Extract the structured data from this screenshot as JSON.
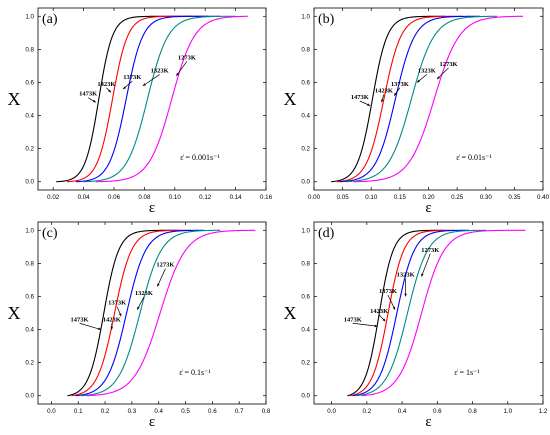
{
  "colors": {
    "1473K": "#000000",
    "1423K": "#ff0000",
    "1373K": "#0000ff",
    "1323K": "#008b8b",
    "1273K": "#ff00ff"
  },
  "chart_data": [
    {
      "type": "line",
      "panel": "(a)",
      "xlabel": "ε",
      "ylabel": "X",
      "rate_label": "ε̇ = 0.001s⁻¹",
      "xlim": [
        0.01,
        0.16
      ],
      "ylim": [
        -0.05,
        1.05
      ],
      "xticks": [
        "0.02",
        "0.04",
        "0.06",
        "0.08",
        "0.10",
        "0.12",
        "0.14",
        "0.16"
      ],
      "yticks": [
        "0.0",
        "0.2",
        "0.4",
        "0.6",
        "0.8",
        "1.0"
      ],
      "series": [
        {
          "name": "1473K",
          "color": "#000000",
          "x_start": 0.022,
          "x_half": 0.05,
          "x_end": 0.112,
          "k": 0.0045
        },
        {
          "name": "1423K",
          "color": "#ff0000",
          "x_start": 0.029,
          "x_half": 0.059,
          "x_end": 0.122,
          "k": 0.005
        },
        {
          "name": "1373K",
          "color": "#0000ff",
          "x_start": 0.035,
          "x_half": 0.068,
          "x_end": 0.13,
          "k": 0.0055
        },
        {
          "name": "1323K",
          "color": "#008b8b",
          "x_start": 0.04,
          "x_half": 0.082,
          "x_end": 0.14,
          "k": 0.0068
        },
        {
          "name": "1273K",
          "color": "#ff00ff",
          "x_start": 0.048,
          "x_half": 0.098,
          "x_end": 0.148,
          "k": 0.0075
        }
      ],
      "annotations": [
        {
          "text": "1473K",
          "x": 0.043,
          "y": 0.52,
          "tx": 0.048,
          "ty": 0.48
        },
        {
          "text": "1423K",
          "x": 0.055,
          "y": 0.58,
          "tx": 0.058,
          "ty": 0.54
        },
        {
          "text": "1373K",
          "x": 0.072,
          "y": 0.62,
          "tx": 0.066,
          "ty": 0.56
        },
        {
          "text": "1323K",
          "x": 0.09,
          "y": 0.66,
          "tx": 0.079,
          "ty": 0.58
        },
        {
          "text": "1273K",
          "x": 0.108,
          "y": 0.74,
          "tx": 0.101,
          "ty": 0.64
        }
      ]
    },
    {
      "type": "line",
      "panel": "(b)",
      "xlabel": "ε",
      "ylabel": "X",
      "rate_label": "ε̇ = 0.01s⁻¹",
      "xlim": [
        0.0,
        0.4
      ],
      "ylim": [
        -0.05,
        1.05
      ],
      "xticks": [
        "0.00",
        "0.05",
        "0.10",
        "0.15",
        "0.20",
        "0.25",
        "0.30",
        "0.35",
        "0.40"
      ],
      "yticks": [
        "0.0",
        "0.2",
        "0.4",
        "0.6",
        "0.8",
        "1.0"
      ],
      "series": [
        {
          "name": "1473K",
          "color": "#000000",
          "x_start": 0.03,
          "x_half": 0.102,
          "x_end": 0.23,
          "k": 0.013
        },
        {
          "name": "1423K",
          "color": "#ff0000",
          "x_start": 0.04,
          "x_half": 0.122,
          "x_end": 0.26,
          "k": 0.015
        },
        {
          "name": "1373K",
          "color": "#0000ff",
          "x_start": 0.045,
          "x_half": 0.142,
          "x_end": 0.29,
          "k": 0.017
        },
        {
          "name": "1323K",
          "color": "#008b8b",
          "x_start": 0.055,
          "x_half": 0.17,
          "x_end": 0.32,
          "k": 0.02
        },
        {
          "name": "1273K",
          "color": "#ff00ff",
          "x_start": 0.07,
          "x_half": 0.21,
          "x_end": 0.365,
          "k": 0.022
        }
      ],
      "annotations": [
        {
          "text": "1473K",
          "x": 0.08,
          "y": 0.5,
          "tx": 0.098,
          "ty": 0.46
        },
        {
          "text": "1423K",
          "x": 0.122,
          "y": 0.54,
          "tx": 0.118,
          "ty": 0.48
        },
        {
          "text": "1373K",
          "x": 0.15,
          "y": 0.58,
          "tx": 0.14,
          "ty": 0.52
        },
        {
          "text": "1323K",
          "x": 0.197,
          "y": 0.66,
          "tx": 0.18,
          "ty": 0.6
        },
        {
          "text": "1273K",
          "x": 0.235,
          "y": 0.7,
          "tx": 0.215,
          "ty": 0.62
        }
      ]
    },
    {
      "type": "line",
      "panel": "(c)",
      "xlabel": "ε",
      "ylabel": "X",
      "rate_label": "ε̇ = 0.1s⁻¹",
      "xlim": [
        -0.05,
        0.8
      ],
      "ylim": [
        -0.05,
        1.05
      ],
      "xticks": [
        "0.0",
        "0.1",
        "0.2",
        "0.3",
        "0.4",
        "0.5",
        "0.6",
        "0.7",
        "0.8"
      ],
      "yticks": [
        "0.0",
        "0.2",
        "0.4",
        "0.6",
        "0.8",
        "1.0"
      ],
      "series": [
        {
          "name": "1473K",
          "color": "#000000",
          "x_start": 0.06,
          "x_half": 0.195,
          "x_end": 0.47,
          "k": 0.028
        },
        {
          "name": "1423K",
          "color": "#ff0000",
          "x_start": 0.075,
          "x_half": 0.235,
          "x_end": 0.52,
          "k": 0.032
        },
        {
          "name": "1373K",
          "color": "#0000ff",
          "x_start": 0.09,
          "x_half": 0.28,
          "x_end": 0.57,
          "k": 0.036
        },
        {
          "name": "1323K",
          "color": "#008b8b",
          "x_start": 0.11,
          "x_half": 0.33,
          "x_end": 0.63,
          "k": 0.04
        },
        {
          "name": "1273K",
          "color": "#ff00ff",
          "x_start": 0.13,
          "x_half": 0.405,
          "x_end": 0.76,
          "k": 0.048
        }
      ],
      "annotations": [
        {
          "text": "1473K",
          "x": 0.105,
          "y": 0.45,
          "tx": 0.185,
          "ty": 0.4
        },
        {
          "text": "1423K",
          "x": 0.225,
          "y": 0.45,
          "tx": 0.225,
          "ty": 0.4
        },
        {
          "text": "1373K",
          "x": 0.245,
          "y": 0.55,
          "tx": 0.26,
          "ty": 0.48
        },
        {
          "text": "1323K",
          "x": 0.345,
          "y": 0.61,
          "tx": 0.32,
          "ty": 0.52
        },
        {
          "text": "1273K",
          "x": 0.425,
          "y": 0.78,
          "tx": 0.395,
          "ty": 0.66
        }
      ]
    },
    {
      "type": "line",
      "panel": "(d)",
      "xlabel": "ε",
      "ylabel": "X",
      "rate_label": "ε̇ = 1s⁻¹",
      "xlim": [
        -0.1,
        1.2
      ],
      "ylim": [
        -0.05,
        1.05
      ],
      "xticks": [
        "0.0",
        "0.2",
        "0.4",
        "0.6",
        "0.8",
        "1.0",
        "1.2"
      ],
      "yticks": [
        "0.0",
        "0.2",
        "0.4",
        "0.6",
        "0.8",
        "1.0"
      ],
      "series": [
        {
          "name": "1473K",
          "color": "#000000",
          "x_start": 0.09,
          "x_half": 0.27,
          "x_end": 0.64,
          "k": 0.04
        },
        {
          "name": "1423K",
          "color": "#ff0000",
          "x_start": 0.105,
          "x_half": 0.32,
          "x_end": 0.7,
          "k": 0.045
        },
        {
          "name": "1373K",
          "color": "#0000ff",
          "x_start": 0.12,
          "x_half": 0.37,
          "x_end": 0.78,
          "k": 0.05
        },
        {
          "name": "1323K",
          "color": "#008b8b",
          "x_start": 0.14,
          "x_half": 0.43,
          "x_end": 0.88,
          "k": 0.058
        },
        {
          "name": "1273K",
          "color": "#ff00ff",
          "x_start": 0.17,
          "x_half": 0.51,
          "x_end": 1.1,
          "k": 0.065
        }
      ],
      "annotations": [
        {
          "text": "1473K",
          "x": 0.12,
          "y": 0.45,
          "tx": 0.26,
          "ty": 0.42
        },
        {
          "text": "1423K",
          "x": 0.27,
          "y": 0.5,
          "tx": 0.305,
          "ty": 0.45
        },
        {
          "text": "1373K",
          "x": 0.32,
          "y": 0.62,
          "tx": 0.36,
          "ty": 0.52
        },
        {
          "text": "1323K",
          "x": 0.42,
          "y": 0.72,
          "tx": 0.42,
          "ty": 0.6
        },
        {
          "text": "1273K",
          "x": 0.56,
          "y": 0.87,
          "tx": 0.51,
          "ty": 0.72
        }
      ]
    }
  ]
}
